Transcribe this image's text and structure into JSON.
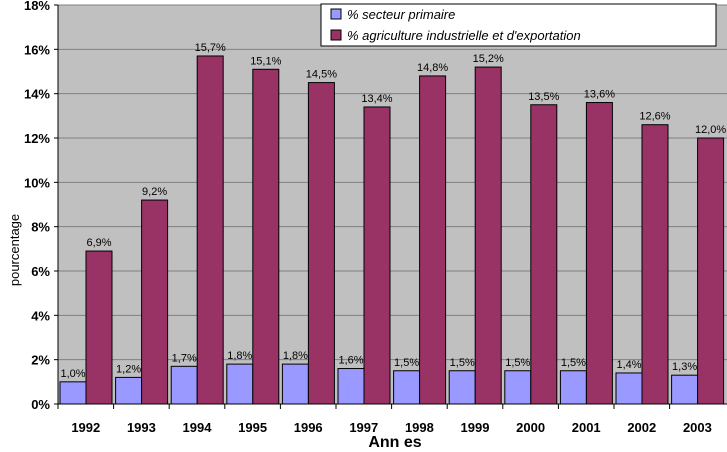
{
  "chart_data": {
    "type": "bar",
    "title": "",
    "xlabel": "Ann es",
    "ylabel": "pourcentage",
    "ylim": [
      0,
      18
    ],
    "yticks": [
      "0%",
      "2%",
      "4%",
      "6%",
      "8%",
      "10%",
      "12%",
      "14%",
      "16%",
      "18%"
    ],
    "grid": true,
    "legend_position": "top-right",
    "categories": [
      "1992",
      "1993",
      "1994",
      "1995",
      "1996",
      "1997",
      "1998",
      "1999",
      "2000",
      "2001",
      "2002",
      "2003"
    ],
    "series": [
      {
        "name": "% secteur primaire",
        "color": "#9999FF",
        "values": [
          1.0,
          1.2,
          1.7,
          1.8,
          1.8,
          1.6,
          1.5,
          1.5,
          1.5,
          1.5,
          1.4,
          1.3
        ],
        "labels": [
          "1,0%",
          "1,2%",
          "1,7%",
          "1,8%",
          "1,8%",
          "1,6%",
          "1,5%",
          "1,5%",
          "1,5%",
          "1,5%",
          "1,4%",
          "1,3%"
        ]
      },
      {
        "name": "% agriculture industrielle et d'exportation",
        "color": "#993366",
        "values": [
          6.9,
          9.2,
          15.7,
          15.1,
          14.5,
          13.4,
          14.8,
          15.2,
          13.5,
          13.6,
          12.6,
          12.0
        ],
        "labels": [
          "6,9%",
          "9,2%",
          "15,7%",
          "15,1%",
          "14,5%",
          "13,4%",
          "14,8%",
          "15,2%",
          "13,5%",
          "13,6%",
          "12,6%",
          "12,0%"
        ]
      }
    ]
  }
}
